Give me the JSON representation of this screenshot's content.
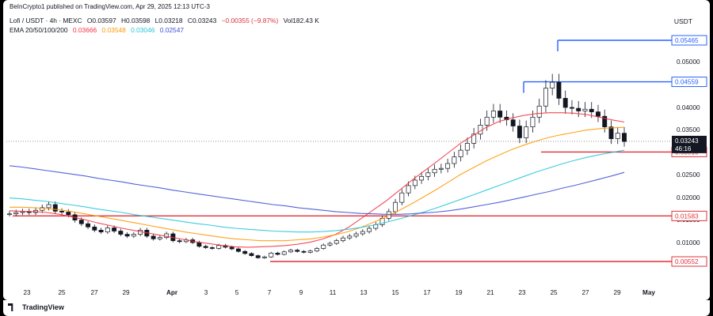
{
  "header": {
    "published": "BeInCrypto1 published on TradingView.com, Apr 29, 2025 12:13 UTC-3",
    "symbol": "Lofi / USDT · 4h · MEXC",
    "open": "O0.03597",
    "high": "H0.03598",
    "low": "L0.03218",
    "close": "C0.03243",
    "change": "−0.00355 (−9.87%)",
    "volume": "Vol182.43 K",
    "ema_label": "EMA 20/50/100/200",
    "ema_values": [
      "0.03666",
      "0.03548",
      "0.03046",
      "0.02547"
    ]
  },
  "currency": "USDT",
  "footer": {
    "brand": "TradingView"
  },
  "colors": {
    "ema20": "#f23645",
    "ema50": "#ff9800",
    "ema100": "#26c6da",
    "ema200": "#3f51d5",
    "levels_red": "#e0313a",
    "levels_blue": "#2962ff",
    "candle": "#131722"
  },
  "chart_data": {
    "type": "line",
    "title": "",
    "y_axis_ticks": [
      "0.01000",
      "0.01500",
      "0.02000",
      "0.02500",
      "0.03000",
      "0.03500",
      "0.04000",
      "0.05000"
    ],
    "x_axis_ticks": [
      "23",
      "25",
      "27",
      "29",
      "Apr",
      "3",
      "5",
      "7",
      "9",
      "11",
      "13",
      "15",
      "17",
      "19",
      "21",
      "23",
      "25",
      "27",
      "29",
      "May"
    ],
    "ylim": [
      0,
      0.058
    ],
    "current_price": {
      "value": 0.03243,
      "label": "0.03243",
      "countdown": "46:16"
    },
    "horizontal_levels": [
      {
        "value": 0.05465,
        "label": "0.05465",
        "color": "blue"
      },
      {
        "value": 0.04559,
        "label": "0.04559",
        "color": "blue"
      },
      {
        "value": 0.0301,
        "label": "0.03010",
        "color": "red"
      },
      {
        "value": 0.01583,
        "label": "0.01583",
        "color": "red"
      },
      {
        "value": 0.00552,
        "label": "0.00552",
        "color": "red"
      }
    ],
    "price_close_series": [
      0.0163,
      0.0166,
      0.0168,
      0.0166,
      0.0171,
      0.0177,
      0.0184,
      0.0169,
      0.0167,
      0.0161,
      0.0149,
      0.0141,
      0.0134,
      0.0127,
      0.0123,
      0.0132,
      0.0125,
      0.0118,
      0.0114,
      0.0118,
      0.0127,
      0.0114,
      0.0108,
      0.0111,
      0.0119,
      0.0104,
      0.0102,
      0.0106,
      0.01,
      0.0091,
      0.0088,
      0.0086,
      0.0093,
      0.0089,
      0.0085,
      0.0079,
      0.0074,
      0.0069,
      0.0064,
      0.0066,
      0.0075,
      0.0072,
      0.0078,
      0.0082,
      0.0079,
      0.0077,
      0.008,
      0.0086,
      0.0094,
      0.0098,
      0.0104,
      0.011,
      0.0114,
      0.0119,
      0.0124,
      0.0131,
      0.0139,
      0.0153,
      0.0168,
      0.0189,
      0.021,
      0.0226,
      0.0238,
      0.0246,
      0.0254,
      0.0262,
      0.0264,
      0.0275,
      0.029,
      0.0305,
      0.032,
      0.034,
      0.036,
      0.0378,
      0.0392,
      0.0378,
      0.0372,
      0.0358,
      0.0332,
      0.0356,
      0.0378,
      0.0403,
      0.0442,
      0.0455,
      0.042,
      0.04,
      0.0398,
      0.0392,
      0.0396,
      0.039,
      0.038,
      0.0356,
      0.033,
      0.0342,
      0.0324
    ],
    "series": [
      {
        "name": "EMA 20",
        "values": [
          0.017,
          0.0169,
          0.0168,
          0.0166,
          0.0162,
          0.0156,
          0.015,
          0.0143,
          0.0137,
          0.0131,
          0.0126,
          0.0121,
          0.0116,
          0.0111,
          0.0106,
          0.0101,
          0.0097,
          0.0093,
          0.009,
          0.0089,
          0.009,
          0.0091,
          0.0093,
          0.0096,
          0.0101,
          0.0108,
          0.0118,
          0.0133,
          0.0152,
          0.0172,
          0.0192,
          0.0214,
          0.0236,
          0.0257,
          0.0278,
          0.03,
          0.0321,
          0.0338,
          0.0355,
          0.0368,
          0.0376,
          0.0382,
          0.0386,
          0.0388,
          0.0388,
          0.0387,
          0.0384,
          0.0378,
          0.0372,
          0.0367
        ]
      },
      {
        "name": "EMA 50",
        "values": [
          0.0178,
          0.0178,
          0.0177,
          0.0175,
          0.0172,
          0.0168,
          0.0163,
          0.0158,
          0.0153,
          0.0148,
          0.0143,
          0.0138,
          0.0133,
          0.0128,
          0.0123,
          0.0119,
          0.0115,
          0.0111,
          0.0108,
          0.0106,
          0.0104,
          0.0104,
          0.0104,
          0.0106,
          0.0108,
          0.0112,
          0.0117,
          0.0124,
          0.0133,
          0.0144,
          0.0156,
          0.017,
          0.0185,
          0.0201,
          0.0217,
          0.0234,
          0.0251,
          0.0266,
          0.0281,
          0.0294,
          0.0306,
          0.0316,
          0.0325,
          0.0333,
          0.0339,
          0.0344,
          0.0349,
          0.0352,
          0.0354,
          0.0355
        ]
      },
      {
        "name": "EMA 100",
        "values": [
          0.0199,
          0.0197,
          0.0194,
          0.0191,
          0.0187,
          0.0183,
          0.0179,
          0.0174,
          0.017,
          0.0166,
          0.0161,
          0.0157,
          0.0153,
          0.0149,
          0.0145,
          0.0141,
          0.0138,
          0.0134,
          0.0131,
          0.0129,
          0.0127,
          0.0125,
          0.0124,
          0.0123,
          0.0123,
          0.0124,
          0.0126,
          0.0129,
          0.0133,
          0.0138,
          0.0144,
          0.0151,
          0.0159,
          0.0167,
          0.0176,
          0.0186,
          0.0196,
          0.0206,
          0.0216,
          0.0226,
          0.0236,
          0.0246,
          0.0256,
          0.0265,
          0.0274,
          0.0282,
          0.0289,
          0.0295,
          0.03,
          0.0305
        ]
      },
      {
        "name": "EMA 200",
        "values": [
          0.027,
          0.0267,
          0.0263,
          0.0259,
          0.0255,
          0.0251,
          0.0247,
          0.0242,
          0.0238,
          0.0234,
          0.0229,
          0.0225,
          0.0221,
          0.0216,
          0.0212,
          0.0208,
          0.0204,
          0.02,
          0.0196,
          0.0192,
          0.0188,
          0.0184,
          0.0181,
          0.0177,
          0.0174,
          0.0171,
          0.0168,
          0.0166,
          0.0164,
          0.0163,
          0.0162,
          0.0162,
          0.0163,
          0.0165,
          0.0167,
          0.017,
          0.0174,
          0.0179,
          0.0184,
          0.0189,
          0.0195,
          0.0201,
          0.0207,
          0.0213,
          0.022,
          0.0226,
          0.0233,
          0.024,
          0.0247,
          0.0255
        ]
      }
    ]
  }
}
